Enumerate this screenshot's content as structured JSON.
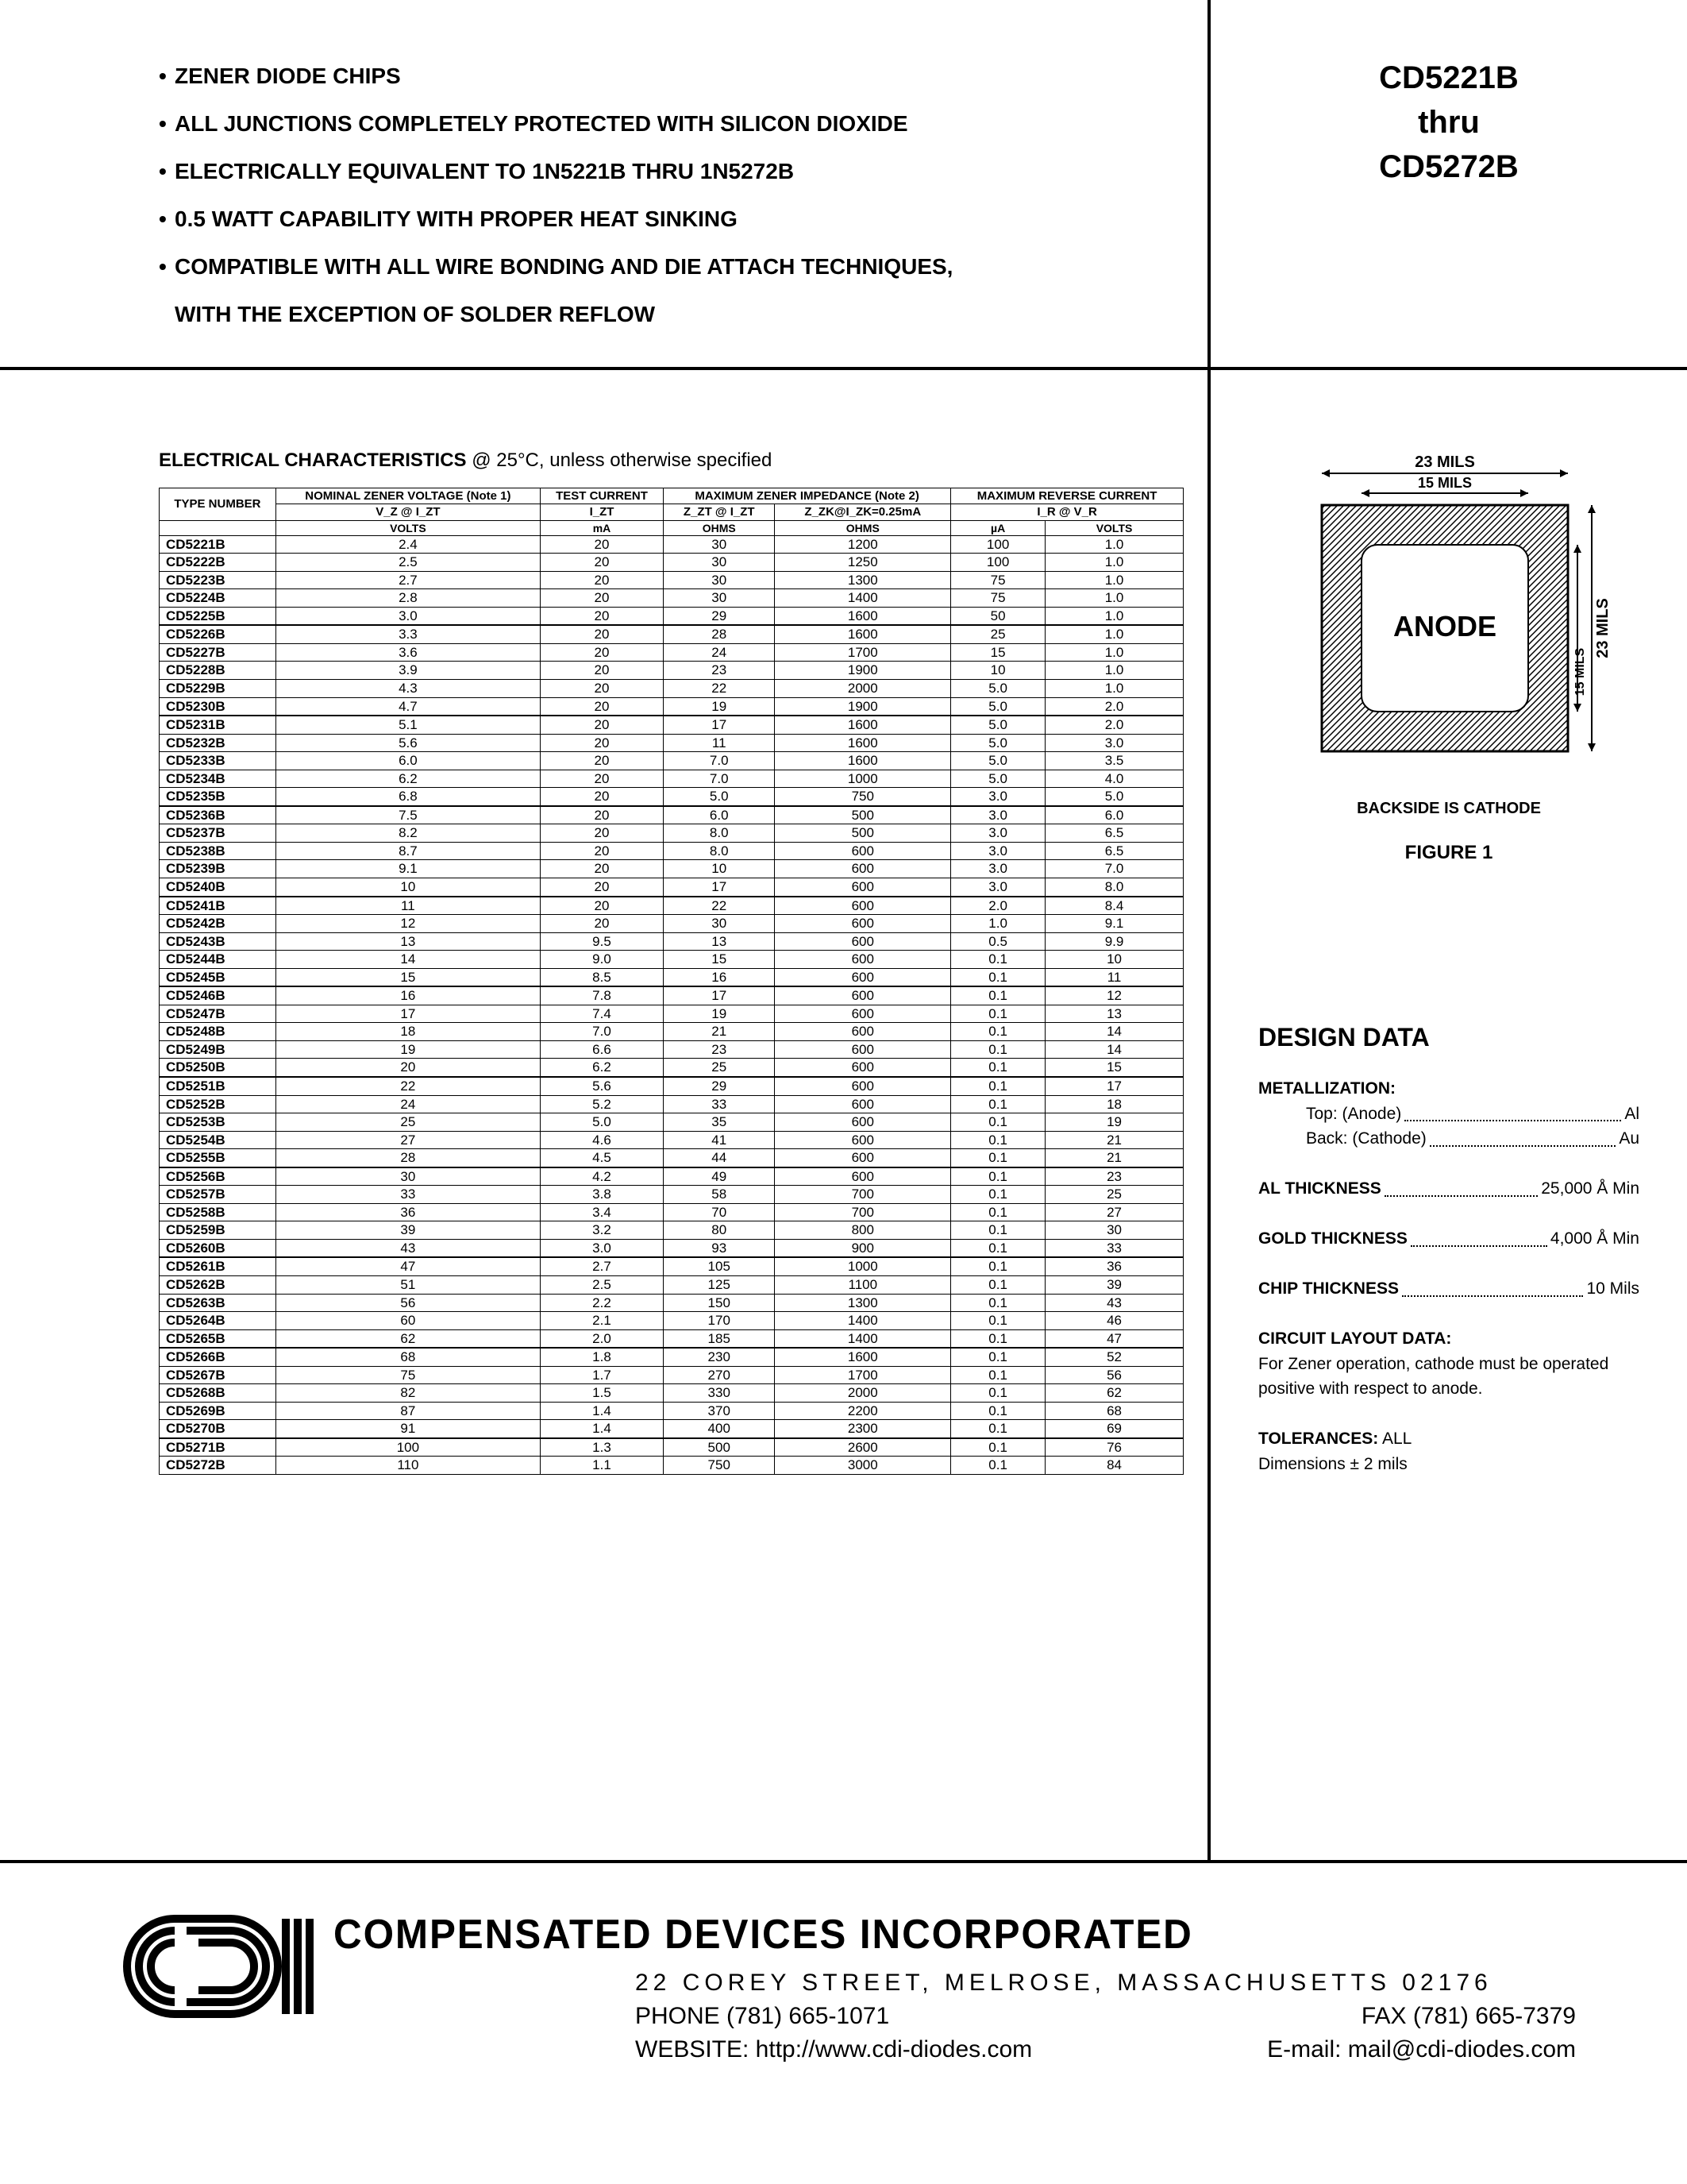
{
  "features": [
    "ZENER DIODE CHIPS",
    "ALL JUNCTIONS COMPLETELY PROTECTED WITH SILICON DIOXIDE",
    "ELECTRICALLY EQUIVALENT TO 1N5221B THRU 1N5272B",
    "0.5 WATT CAPABILITY WITH PROPER HEAT SINKING",
    "COMPATIBLE WITH ALL WIRE BONDING AND DIE ATTACH TECHNIQUES,"
  ],
  "feature_sub": "WITH THE EXCEPTION OF SOLDER REFLOW",
  "part_header": {
    "l1": "CD5221B",
    "l2": "thru",
    "l3": "CD5272B"
  },
  "ec_title_bold": "ELECTRICAL CHARACTERISTICS",
  "ec_title_rest": " @ 25°C, unless otherwise specified",
  "table": {
    "head1": [
      "TYPE NUMBER",
      "NOMINAL ZENER VOLTAGE (Note 1)",
      "TEST CURRENT",
      "MAXIMUM ZENER IMPEDANCE (Note 2)",
      "MAXIMUM REVERSE CURRENT"
    ],
    "head2": [
      "",
      "V_Z @ I_ZT",
      "I_ZT",
      "Z_ZT @ I_ZT",
      "Z_ZK@I_ZK=0.25mA",
      "I_R @ V_R"
    ],
    "units": [
      "",
      "VOLTS",
      "mA",
      "OHMS",
      "OHMS",
      "µA",
      "VOLTS"
    ],
    "groups": [
      [
        [
          "CD5221B",
          "2.4",
          "20",
          "30",
          "1200",
          "100",
          "1.0"
        ],
        [
          "CD5222B",
          "2.5",
          "20",
          "30",
          "1250",
          "100",
          "1.0"
        ],
        [
          "CD5223B",
          "2.7",
          "20",
          "30",
          "1300",
          "75",
          "1.0"
        ],
        [
          "CD5224B",
          "2.8",
          "20",
          "30",
          "1400",
          "75",
          "1.0"
        ],
        [
          "CD5225B",
          "3.0",
          "20",
          "29",
          "1600",
          "50",
          "1.0"
        ]
      ],
      [
        [
          "CD5226B",
          "3.3",
          "20",
          "28",
          "1600",
          "25",
          "1.0"
        ],
        [
          "CD5227B",
          "3.6",
          "20",
          "24",
          "1700",
          "15",
          "1.0"
        ],
        [
          "CD5228B",
          "3.9",
          "20",
          "23",
          "1900",
          "10",
          "1.0"
        ],
        [
          "CD5229B",
          "4.3",
          "20",
          "22",
          "2000",
          "5.0",
          "1.0"
        ],
        [
          "CD5230B",
          "4.7",
          "20",
          "19",
          "1900",
          "5.0",
          "2.0"
        ]
      ],
      [
        [
          "CD5231B",
          "5.1",
          "20",
          "17",
          "1600",
          "5.0",
          "2.0"
        ],
        [
          "CD5232B",
          "5.6",
          "20",
          "11",
          "1600",
          "5.0",
          "3.0"
        ],
        [
          "CD5233B",
          "6.0",
          "20",
          "7.0",
          "1600",
          "5.0",
          "3.5"
        ],
        [
          "CD5234B",
          "6.2",
          "20",
          "7.0",
          "1000",
          "5.0",
          "4.0"
        ],
        [
          "CD5235B",
          "6.8",
          "20",
          "5.0",
          "750",
          "3.0",
          "5.0"
        ]
      ],
      [
        [
          "CD5236B",
          "7.5",
          "20",
          "6.0",
          "500",
          "3.0",
          "6.0"
        ],
        [
          "CD5237B",
          "8.2",
          "20",
          "8.0",
          "500",
          "3.0",
          "6.5"
        ],
        [
          "CD5238B",
          "8.7",
          "20",
          "8.0",
          "600",
          "3.0",
          "6.5"
        ],
        [
          "CD5239B",
          "9.1",
          "20",
          "10",
          "600",
          "3.0",
          "7.0"
        ],
        [
          "CD5240B",
          "10",
          "20",
          "17",
          "600",
          "3.0",
          "8.0"
        ]
      ],
      [
        [
          "CD5241B",
          "11",
          "20",
          "22",
          "600",
          "2.0",
          "8.4"
        ],
        [
          "CD5242B",
          "12",
          "20",
          "30",
          "600",
          "1.0",
          "9.1"
        ],
        [
          "CD5243B",
          "13",
          "9.5",
          "13",
          "600",
          "0.5",
          "9.9"
        ],
        [
          "CD5244B",
          "14",
          "9.0",
          "15",
          "600",
          "0.1",
          "10"
        ],
        [
          "CD5245B",
          "15",
          "8.5",
          "16",
          "600",
          "0.1",
          "11"
        ]
      ],
      [
        [
          "CD5246B",
          "16",
          "7.8",
          "17",
          "600",
          "0.1",
          "12"
        ],
        [
          "CD5247B",
          "17",
          "7.4",
          "19",
          "600",
          "0.1",
          "13"
        ],
        [
          "CD5248B",
          "18",
          "7.0",
          "21",
          "600",
          "0.1",
          "14"
        ],
        [
          "CD5249B",
          "19",
          "6.6",
          "23",
          "600",
          "0.1",
          "14"
        ],
        [
          "CD5250B",
          "20",
          "6.2",
          "25",
          "600",
          "0.1",
          "15"
        ]
      ],
      [
        [
          "CD5251B",
          "22",
          "5.6",
          "29",
          "600",
          "0.1",
          "17"
        ],
        [
          "CD5252B",
          "24",
          "5.2",
          "33",
          "600",
          "0.1",
          "18"
        ],
        [
          "CD5253B",
          "25",
          "5.0",
          "35",
          "600",
          "0.1",
          "19"
        ],
        [
          "CD5254B",
          "27",
          "4.6",
          "41",
          "600",
          "0.1",
          "21"
        ],
        [
          "CD5255B",
          "28",
          "4.5",
          "44",
          "600",
          "0.1",
          "21"
        ]
      ],
      [
        [
          "CD5256B",
          "30",
          "4.2",
          "49",
          "600",
          "0.1",
          "23"
        ],
        [
          "CD5257B",
          "33",
          "3.8",
          "58",
          "700",
          "0.1",
          "25"
        ],
        [
          "CD5258B",
          "36",
          "3.4",
          "70",
          "700",
          "0.1",
          "27"
        ],
        [
          "CD5259B",
          "39",
          "3.2",
          "80",
          "800",
          "0.1",
          "30"
        ],
        [
          "CD5260B",
          "43",
          "3.0",
          "93",
          "900",
          "0.1",
          "33"
        ]
      ],
      [
        [
          "CD5261B",
          "47",
          "2.7",
          "105",
          "1000",
          "0.1",
          "36"
        ],
        [
          "CD5262B",
          "51",
          "2.5",
          "125",
          "1100",
          "0.1",
          "39"
        ],
        [
          "CD5263B",
          "56",
          "2.2",
          "150",
          "1300",
          "0.1",
          "43"
        ],
        [
          "CD5264B",
          "60",
          "2.1",
          "170",
          "1400",
          "0.1",
          "46"
        ],
        [
          "CD5265B",
          "62",
          "2.0",
          "185",
          "1400",
          "0.1",
          "47"
        ]
      ],
      [
        [
          "CD5266B",
          "68",
          "1.8",
          "230",
          "1600",
          "0.1",
          "52"
        ],
        [
          "CD5267B",
          "75",
          "1.7",
          "270",
          "1700",
          "0.1",
          "56"
        ],
        [
          "CD5268B",
          "82",
          "1.5",
          "330",
          "2000",
          "0.1",
          "62"
        ],
        [
          "CD5269B",
          "87",
          "1.4",
          "370",
          "2200",
          "0.1",
          "68"
        ],
        [
          "CD5270B",
          "91",
          "1.4",
          "400",
          "2300",
          "0.1",
          "69"
        ]
      ],
      [
        [
          "CD5271B",
          "100",
          "1.3",
          "500",
          "2600",
          "0.1",
          "76"
        ],
        [
          "CD5272B",
          "110",
          "1.1",
          "750",
          "3000",
          "0.1",
          "84"
        ]
      ]
    ]
  },
  "figure": {
    "outer_dim": "23 MILS",
    "inner_dim": "15 MILS",
    "anode_label": "ANODE",
    "backside": "BACKSIDE IS CATHODE",
    "title": "FIGURE 1"
  },
  "design": {
    "title": "DESIGN DATA",
    "metallization": "METALLIZATION:",
    "met_top_l": "Top: (Anode)",
    "met_top_r": "Al",
    "met_back_l": "Back: (Cathode)",
    "met_back_r": "Au",
    "al_l": "AL THICKNESS",
    "al_r": "25,000 Å Min",
    "gold_l": "GOLD THICKNESS",
    "gold_r": "4,000 Å Min",
    "chip_l": "CHIP THICKNESS",
    "chip_r": "10 Mils",
    "circuit_title": "CIRCUIT LAYOUT DATA:",
    "circuit_text": "For Zener operation, cathode must be operated positive with respect to anode.",
    "tol_title": "TOLERANCES:",
    "tol_text": " ALL",
    "tol_dim": "Dimensions ± 2 mils"
  },
  "footer": {
    "company": "COMPENSATED DEVICES INCORPORATED",
    "address": "22 COREY STREET, MELROSE, MASSACHUSETTS 02176",
    "phone": "PHONE (781) 665-1071",
    "fax": "FAX (781) 665-7379",
    "website": "WEBSITE:  http://www.cdi-diodes.com",
    "email": "E-mail: mail@cdi-diodes.com"
  }
}
